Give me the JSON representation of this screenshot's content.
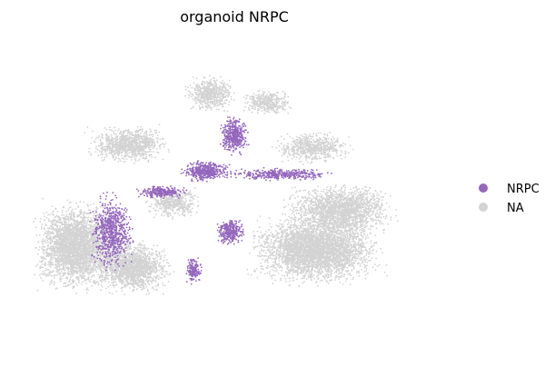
{
  "chart_data": {
    "type": "scatter",
    "title": "organoid NRPC",
    "xlabel": "",
    "ylabel": "",
    "axes_visible": false,
    "grid": false,
    "legend_position": "right",
    "series": [
      {
        "name": "NA",
        "color": "#d3d3d3",
        "regions": [
          {
            "center": [
              -0.78,
              -0.34
            ],
            "radius": [
              0.22,
              0.34
            ],
            "density": 1.0
          },
          {
            "center": [
              -0.5,
              -0.48
            ],
            "radius": [
              0.22,
              0.2
            ],
            "density": 1.0
          },
          {
            "center": [
              0.4,
              -0.36
            ],
            "radius": [
              0.36,
              0.26
            ],
            "density": 1.0
          },
          {
            "center": [
              0.52,
              -0.1
            ],
            "radius": [
              0.3,
              0.2
            ],
            "density": 0.8
          },
          {
            "center": [
              -0.52,
              0.34
            ],
            "radius": [
              0.22,
              0.14
            ],
            "density": 0.8
          },
          {
            "center": [
              -0.12,
              0.68
            ],
            "radius": [
              0.14,
              0.14
            ],
            "density": 0.75
          },
          {
            "center": [
              0.16,
              0.62
            ],
            "radius": [
              0.14,
              0.1
            ],
            "density": 0.7
          },
          {
            "center": [
              0.38,
              0.32
            ],
            "radius": [
              0.22,
              0.12
            ],
            "density": 0.6
          },
          {
            "center": [
              -0.3,
              -0.05
            ],
            "radius": [
              0.16,
              0.12
            ],
            "density": 0.6
          }
        ]
      },
      {
        "name": "NRPC",
        "color": "#9467bd",
        "regions": [
          {
            "center": [
              0.0,
              0.4
            ],
            "radius": [
              0.08,
              0.14
            ],
            "density": 1.0
          },
          {
            "center": [
              -0.14,
              0.16
            ],
            "radius": [
              0.14,
              0.08
            ],
            "density": 1.0
          },
          {
            "center": [
              0.22,
              0.14
            ],
            "radius": [
              0.32,
              0.05
            ],
            "density": 0.6
          },
          {
            "center": [
              -0.36,
              0.02
            ],
            "radius": [
              0.14,
              0.05
            ],
            "density": 0.9
          },
          {
            "center": [
              -0.6,
              -0.24
            ],
            "radius": [
              0.12,
              0.28
            ],
            "density": 0.55
          },
          {
            "center": [
              -0.02,
              -0.24
            ],
            "radius": [
              0.08,
              0.1
            ],
            "density": 1.0
          },
          {
            "center": [
              -0.2,
              -0.5
            ],
            "radius": [
              0.05,
              0.1
            ],
            "density": 0.8
          }
        ]
      }
    ]
  },
  "legend": {
    "items": [
      {
        "label": "NRPC",
        "color": "#9467bd"
      },
      {
        "label": "NA",
        "color": "#d3d3d3"
      }
    ]
  }
}
